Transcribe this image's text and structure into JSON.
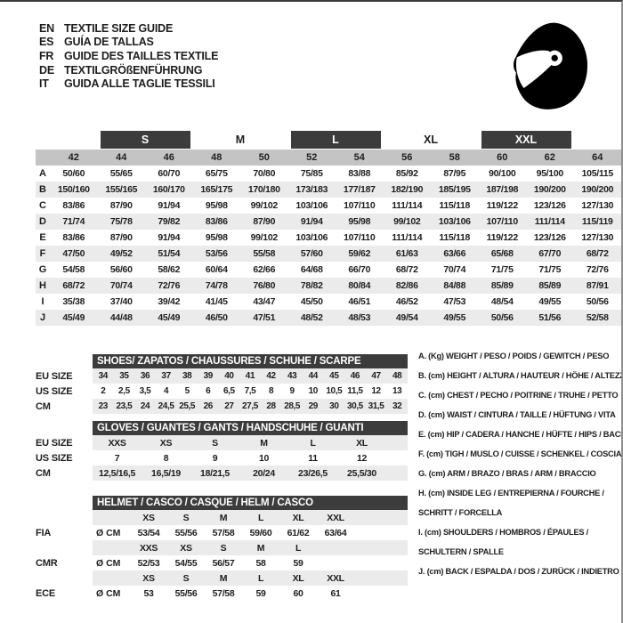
{
  "header": {
    "languages": [
      {
        "code": "EN",
        "label": "TEXTILE SIZE GUIDE"
      },
      {
        "code": "ES",
        "label": "GUÍA DE TALLAS"
      },
      {
        "code": "FR",
        "label": "GUIDE DES TAILLES TEXTILE"
      },
      {
        "code": "DE",
        "label": "TEXTILGRÖßENFÜHRUNG"
      },
      {
        "code": "IT",
        "label": "GUIDA ALLE TAGLIE TESSILI"
      }
    ]
  },
  "colors": {
    "dark_bar": "#3c3c3c",
    "header_row_gray": "#c4c4c4",
    "stripe_gray": "#ebebeb",
    "text": "#1e1e1e",
    "badge_text": "#ffffff"
  },
  "main_size_table": {
    "size_groups": [
      {
        "label": "S",
        "style": "badge"
      },
      {
        "label": "M",
        "style": "plain"
      },
      {
        "label": "L",
        "style": "badge"
      },
      {
        "label": "XL",
        "style": "plain"
      },
      {
        "label": "XXL",
        "style": "badge"
      }
    ],
    "columns": [
      "42",
      "44",
      "46",
      "48",
      "50",
      "52",
      "54",
      "56",
      "58",
      "60",
      "62",
      "64"
    ],
    "rows": [
      {
        "letter": "A",
        "values": [
          "50/60",
          "55/65",
          "60/70",
          "65/75",
          "70/80",
          "75/85",
          "83/88",
          "85/92",
          "87/95",
          "90/100",
          "95/100",
          "105/115"
        ]
      },
      {
        "letter": "B",
        "values": [
          "150/160",
          "155/165",
          "160/170",
          "165/175",
          "170/180",
          "173/183",
          "177/187",
          "182/190",
          "185/195",
          "187/198",
          "190/200",
          "190/200"
        ]
      },
      {
        "letter": "C",
        "values": [
          "83/86",
          "87/90",
          "91/94",
          "95/98",
          "99/102",
          "103/106",
          "107/110",
          "111/114",
          "115/118",
          "119/122",
          "123/126",
          "127/130"
        ]
      },
      {
        "letter": "D",
        "values": [
          "71/74",
          "75/78",
          "79/82",
          "83/86",
          "87/90",
          "91/94",
          "95/98",
          "99/102",
          "103/106",
          "107/110",
          "111/114",
          "115/119"
        ]
      },
      {
        "letter": "E",
        "values": [
          "83/86",
          "87/90",
          "91/94",
          "95/98",
          "99/102",
          "103/106",
          "107/110",
          "111/114",
          "115/118",
          "119/122",
          "123/126",
          "127/130"
        ]
      },
      {
        "letter": "F",
        "values": [
          "47/50",
          "49/52",
          "51/54",
          "53/56",
          "55/58",
          "57/60",
          "59/62",
          "61/63",
          "63/66",
          "65/68",
          "67/70",
          "68/72"
        ]
      },
      {
        "letter": "G",
        "values": [
          "54/58",
          "56/60",
          "58/62",
          "60/64",
          "62/66",
          "64/68",
          "66/70",
          "68/72",
          "70/74",
          "71/75",
          "71/75",
          "72/76"
        ]
      },
      {
        "letter": "H",
        "values": [
          "68/72",
          "70/74",
          "72/76",
          "74/78",
          "76/80",
          "78/82",
          "80/84",
          "82/86",
          "84/88",
          "85/89",
          "85/89",
          "87/91"
        ]
      },
      {
        "letter": "I",
        "values": [
          "35/38",
          "37/40",
          "39/42",
          "41/45",
          "43/47",
          "45/50",
          "46/51",
          "46/52",
          "47/53",
          "48/54",
          "49/55",
          "50/56"
        ]
      },
      {
        "letter": "J",
        "values": [
          "45/49",
          "44/48",
          "45/49",
          "46/50",
          "47/51",
          "48/52",
          "48/53",
          "49/54",
          "49/55",
          "50/56",
          "51/56",
          "52/58"
        ]
      }
    ]
  },
  "shoes_table": {
    "title": "SHOES/ ZAPATOS / CHAUSSURES / SCHUHE / SCARPE",
    "rows": [
      {
        "label": "EU SIZE",
        "shade": true,
        "values": [
          "34",
          "35",
          "36",
          "37",
          "38",
          "39",
          "40",
          "41",
          "42",
          "43",
          "44",
          "45",
          "46",
          "47",
          "48"
        ]
      },
      {
        "label": "US SIZE",
        "shade": false,
        "values": [
          "2",
          "2,5",
          "3,5",
          "4",
          "5",
          "6",
          "6,5",
          "7,5",
          "8",
          "9",
          "10",
          "10,5",
          "11,5",
          "12",
          "13"
        ]
      },
      {
        "label": "CM",
        "shade": true,
        "values": [
          "23",
          "23,5",
          "24",
          "24,5",
          "25,5",
          "26",
          "27",
          "27,5",
          "28",
          "28,5",
          "29",
          "30",
          "30,5",
          "31,5",
          "32"
        ]
      }
    ]
  },
  "gloves_table": {
    "title": "GLOVES / GUANTES / GANTS / HANDSCHUHE / GUANTI",
    "rows": [
      {
        "label": "EU SIZE",
        "shade": true,
        "values": [
          "XXS",
          "XS",
          "S",
          "M",
          "L",
          "XL"
        ]
      },
      {
        "label": "US SIZE",
        "shade": false,
        "values": [
          "7",
          "8",
          "9",
          "10",
          "11",
          "12"
        ]
      },
      {
        "label": "CM",
        "shade": true,
        "values": [
          "12,5/16,5",
          "16,5/19",
          "18/21,5",
          "20/24",
          "23/26,5",
          "25,5/30"
        ]
      }
    ]
  },
  "helmet_table": {
    "title": "HELMET / CASCO / CASQUE / HELM / CASCO",
    "sections": [
      {
        "label": "FIA",
        "unit": "Ø CM",
        "sizes": [
          "XS",
          "S",
          "M",
          "L",
          "XL",
          "XXL"
        ],
        "values": [
          "53/54",
          "55/56",
          "57/58",
          "59/60",
          "61/62",
          "63/64"
        ]
      },
      {
        "label": "CMR",
        "unit": "Ø CM",
        "sizes": [
          "XXS",
          "XS",
          "S",
          "M",
          "L",
          ""
        ],
        "values": [
          "52/53",
          "54/55",
          "56/57",
          "58",
          "59",
          ""
        ]
      },
      {
        "label": "ECE",
        "unit": "Ø CM",
        "sizes": [
          "XS",
          "S",
          "M",
          "L",
          "XL",
          "XXL"
        ],
        "values": [
          "53",
          "55/56",
          "57/58",
          "59",
          "60",
          "61"
        ]
      }
    ]
  },
  "measurements_legend": {
    "items": [
      {
        "lines": [
          "A. (Kg) WEIGHT / PESO / POIDS / GEWITCH / PESO"
        ]
      },
      {
        "lines": [
          "B. (cm) HEIGHT / ALTURA / HAUTEUR / HÖHE / ALTEZZA"
        ]
      },
      {
        "lines": [
          "C. (cm) CHEST / PECHO / POITRINE / TRUHE / PETTO"
        ]
      },
      {
        "lines": [
          "D. (cm) WAIST / CINTURA / TAILLE / HÜFTUNG / VITA"
        ]
      },
      {
        "lines": [
          "E. (cm) HIP / CADERA / HANCHE / HÜFTE / HIPS / BACINO"
        ]
      },
      {
        "lines": [
          "F. (cm) TIGH / MUSLO / CUISSE / SCHENKEL / COSCIA"
        ]
      },
      {
        "lines": [
          "G. (cm) ARM / BRAZO / BRAS / ARM / BRACCIO"
        ]
      },
      {
        "lines": [
          "H. (cm) INSIDE LEG / ENTREPIERNA / FOURCHE /",
          "SCHRITT / FORCELLA"
        ]
      },
      {
        "lines": [
          "I. (cm) SHOULDERS / HOMBROS / ÉPAULES /",
          "SCHULTERN / SPALLE"
        ]
      },
      {
        "lines": [
          "J. (cm) BACK / ESPALDA / DOS / ZURÜCK / INDIETRO"
        ]
      }
    ]
  }
}
